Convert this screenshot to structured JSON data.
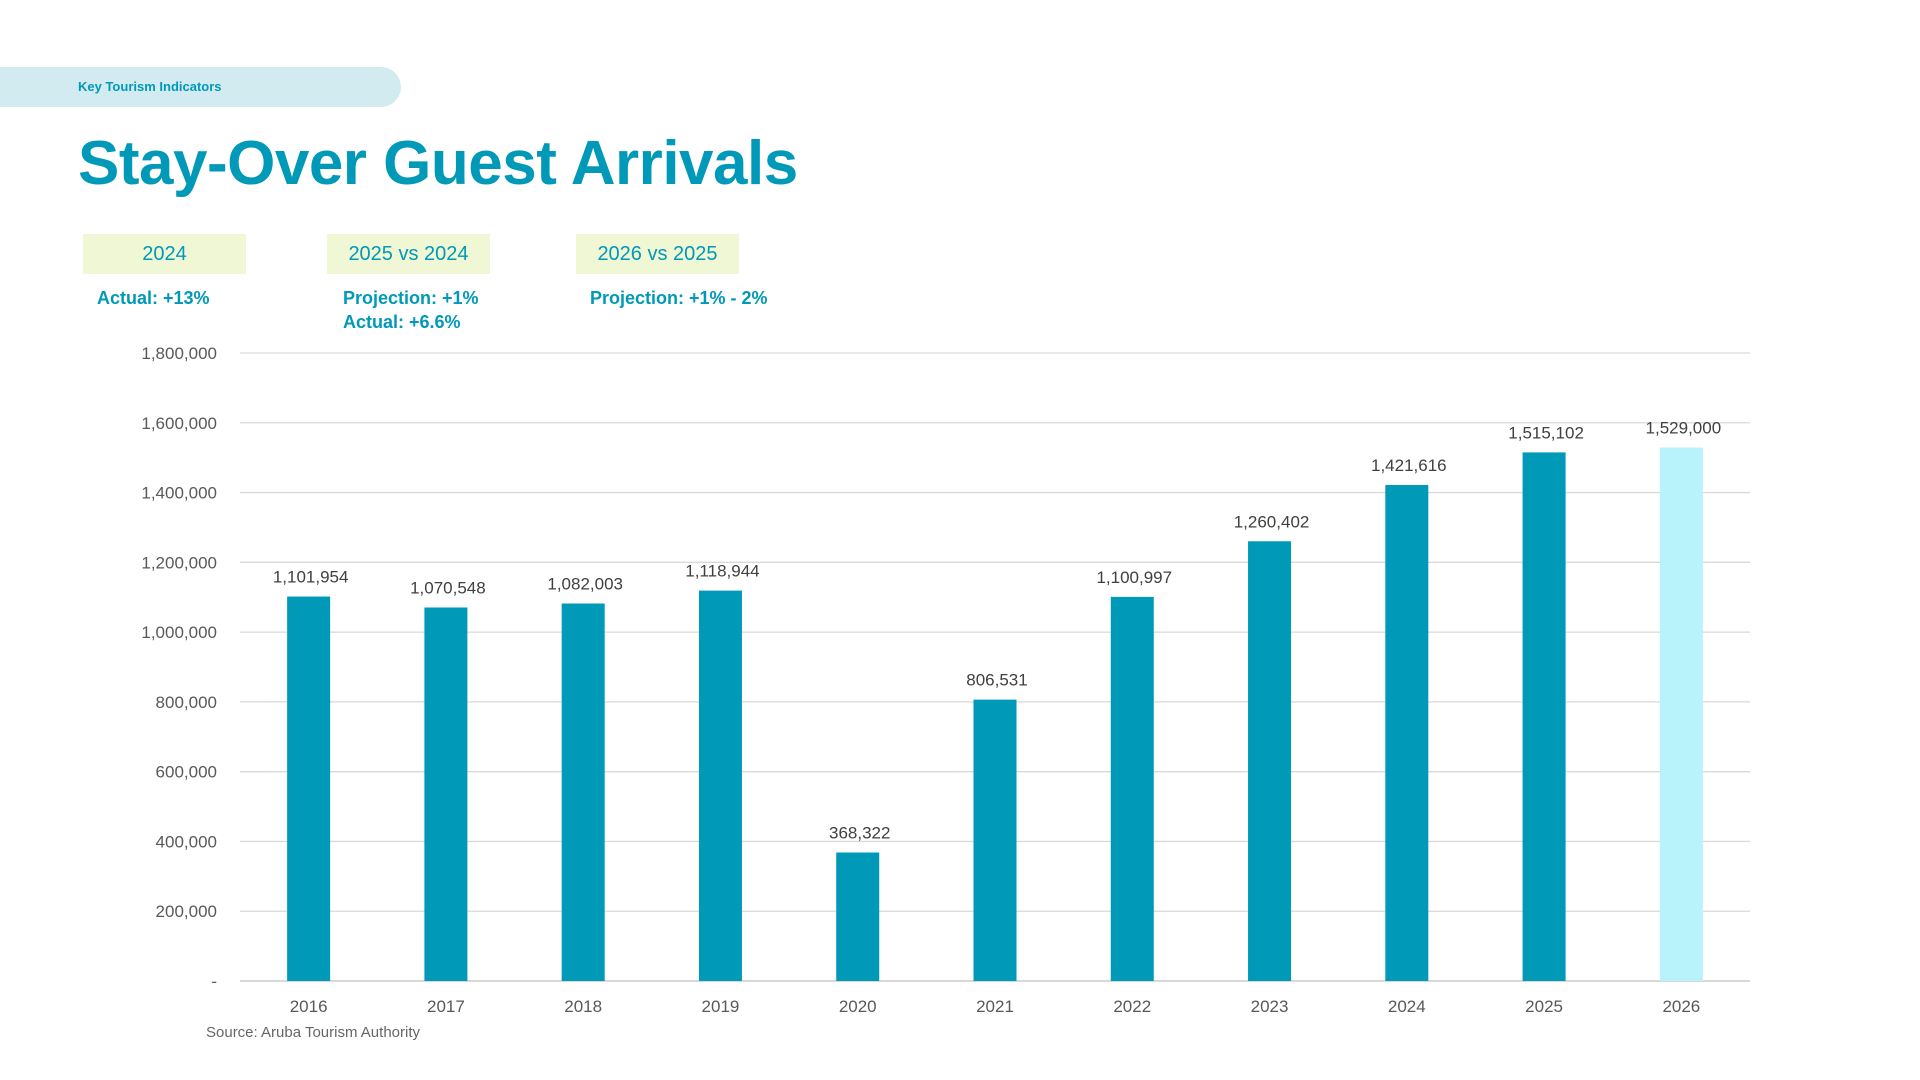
{
  "header": {
    "section_label": "Key Tourism Indicators",
    "title": "Stay-Over Guest Arrivals"
  },
  "kpis": [
    {
      "label": "2024",
      "lines": [
        "Actual: +13%"
      ]
    },
    {
      "label": "2025 vs 2024",
      "lines": [
        "Projection: +1%",
        "Actual: +6.6%"
      ]
    },
    {
      "label": "2026 vs 2025",
      "lines": [
        "Projection: +1% - 2%"
      ]
    }
  ],
  "colors": {
    "accent": "#0099B8",
    "projection_bar": "#B8F3FC",
    "kpi_bg": "#F0F7D4",
    "pill_bg": "#D2EBF0"
  },
  "chart_data": {
    "type": "bar",
    "categories": [
      "2016",
      "2017",
      "2018",
      "2019",
      "2020",
      "2021",
      "2022",
      "2023",
      "2024",
      "2025",
      "2026"
    ],
    "values": [
      1101954,
      1070548,
      1082003,
      1118944,
      368322,
      806531,
      1100997,
      1260402,
      1421616,
      1515102,
      1529000
    ],
    "data_labels": [
      "1,101,954",
      "1,070,548",
      "1,082,003",
      "1,118,944",
      "368,322",
      "806,531",
      "1,100,997",
      "1,260,402",
      "1,421,616",
      "1,515,102",
      "1,529,000"
    ],
    "projected": [
      false,
      false,
      false,
      false,
      false,
      false,
      false,
      false,
      false,
      false,
      true
    ],
    "ylim": [
      0,
      1800000
    ],
    "yticks": [
      0,
      200000,
      400000,
      600000,
      800000,
      1000000,
      1200000,
      1400000,
      1600000,
      1800000
    ],
    "ytick_labels": [
      "-",
      "200,000",
      "400,000",
      "600,000",
      "800,000",
      "1,000,000",
      "1,200,000",
      "1,400,000",
      "1,600,000",
      "1,800,000"
    ],
    "grid": true,
    "source": "Source: Aruba Tourism Authority"
  }
}
